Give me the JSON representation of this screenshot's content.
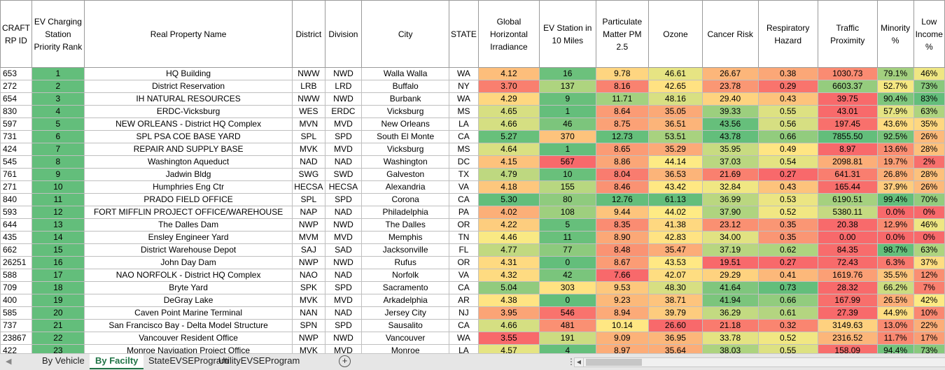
{
  "columns": [
    "CRAFT RP ID",
    "EV Charging Station Priority Rank",
    "Real Property Name",
    "District",
    "Division",
    "City",
    "STATE",
    "Global Horizontal Irradiance",
    "EV Station in 10 Miles",
    "Particulate Matter PM 2.5",
    "Ozone",
    "Cancer Risk",
    "Respiratory Hazard",
    "Traffic Proximity",
    "Minority %",
    "Low Income %"
  ],
  "rows": [
    [
      "653",
      "1",
      "HQ Building",
      "NWW",
      "NWD",
      "Walla Walla",
      "WA",
      "4.12",
      "16",
      "9.78",
      "46.61",
      "26.67",
      "0.38",
      "1030.73",
      "79.1%",
      "46%"
    ],
    [
      "272",
      "2",
      "District Reservation",
      "LRB",
      "LRD",
      "Buffalo",
      "NY",
      "3.70",
      "137",
      "8.16",
      "42.65",
      "23.78",
      "0.29",
      "6603.37",
      "52.7%",
      "73%"
    ],
    [
      "654",
      "3",
      "IH NATURAL RESOURCES",
      "NWW",
      "NWD",
      "Burbank",
      "WA",
      "4.29",
      "9",
      "11.71",
      "48.16",
      "29.40",
      "0.43",
      "39.75",
      "90.4%",
      "83%"
    ],
    [
      "830",
      "4",
      "ERDC-Vicksburg",
      "WES",
      "ERDC",
      "Vicksburg",
      "MS",
      "4.65",
      "1",
      "8.64",
      "35.05",
      "39.33",
      "0.55",
      "43.01",
      "57.9%",
      "63%"
    ],
    [
      "597",
      "5",
      "NEW ORLEANS - District HQ Complex",
      "MVN",
      "MVD",
      "New Orleans",
      "LA",
      "4.66",
      "46",
      "8.75",
      "36.51",
      "43.56",
      "0.56",
      "197.45",
      "43.6%",
      "35%"
    ],
    [
      "731",
      "6",
      "SPL PSA COE BASE YARD",
      "SPL",
      "SPD",
      "South El Monte",
      "CA",
      "5.27",
      "370",
      "12.73",
      "53.51",
      "43.78",
      "0.66",
      "7855.50",
      "92.5%",
      "26%"
    ],
    [
      "424",
      "7",
      "REPAIR AND SUPPLY BASE",
      "MVK",
      "MVD",
      "Vicksburg",
      "MS",
      "4.64",
      "1",
      "8.65",
      "35.29",
      "35.95",
      "0.49",
      "8.97",
      "13.6%",
      "28%"
    ],
    [
      "545",
      "8",
      "Washington Aqueduct",
      "NAD",
      "NAD",
      "Washington",
      "DC",
      "4.15",
      "567",
      "8.86",
      "44.14",
      "37.03",
      "0.54",
      "2098.81",
      "19.7%",
      "2%"
    ],
    [
      "761",
      "9",
      "Jadwin Bldg",
      "SWG",
      "SWD",
      "Galveston",
      "TX",
      "4.79",
      "10",
      "8.04",
      "36.53",
      "21.69",
      "0.27",
      "641.31",
      "26.8%",
      "28%"
    ],
    [
      "271",
      "10",
      "Humphries Eng Ctr",
      "HECSA",
      "HECSA",
      "Alexandria",
      "VA",
      "4.18",
      "155",
      "8.46",
      "43.42",
      "32.84",
      "0.43",
      "165.44",
      "37.9%",
      "26%"
    ],
    [
      "840",
      "11",
      "PRADO FIELD OFFICE",
      "SPL",
      "SPD",
      "Corona",
      "CA",
      "5.30",
      "80",
      "12.76",
      "61.13",
      "36.99",
      "0.53",
      "6190.51",
      "99.4%",
      "70%"
    ],
    [
      "593",
      "12",
      "FORT MIFFLIN PROJECT OFFICE/WAREHOUSE",
      "NAP",
      "NAD",
      "Philadelphia",
      "PA",
      "4.02",
      "108",
      "9.44",
      "44.02",
      "37.90",
      "0.52",
      "5380.11",
      "0.0%",
      "0%"
    ],
    [
      "644",
      "13",
      "The Dalles Dam",
      "NWP",
      "NWD",
      "The Dalles",
      "OR",
      "4.22",
      "5",
      "8.35",
      "41.38",
      "23.12",
      "0.35",
      "20.38",
      "12.9%",
      "46%"
    ],
    [
      "435",
      "14",
      "Ensley Engineer Yard",
      "MVM",
      "MVD",
      "Memphis",
      "TN",
      "4.46",
      "11",
      "8.90",
      "42.83",
      "34.00",
      "0.35",
      "0.00",
      "0.0%",
      "0%"
    ],
    [
      "662",
      "15",
      "District Warehouse Depot",
      "SAJ",
      "SAD",
      "Jacksonville",
      "FL",
      "4.77",
      "77",
      "8.48",
      "35.47",
      "37.19",
      "0.62",
      "84.35",
      "98.7%",
      "63%"
    ],
    [
      "26251",
      "16",
      "John Day Dam",
      "NWP",
      "NWD",
      "Rufus",
      "OR",
      "4.31",
      "0",
      "8.67",
      "43.53",
      "19.51",
      "0.27",
      "72.43",
      "6.3%",
      "37%"
    ],
    [
      "588",
      "17",
      "NAO NORFOLK - District HQ Complex",
      "NAO",
      "NAD",
      "Norfolk",
      "VA",
      "4.32",
      "42",
      "7.66",
      "42.07",
      "29.29",
      "0.41",
      "1619.76",
      "35.5%",
      "12%"
    ],
    [
      "709",
      "18",
      "Bryte Yard",
      "SPK",
      "SPD",
      "Sacramento",
      "CA",
      "5.04",
      "303",
      "9.53",
      "48.30",
      "41.64",
      "0.73",
      "28.32",
      "66.2%",
      "7%"
    ],
    [
      "400",
      "19",
      "DeGray Lake",
      "MVK",
      "MVD",
      "Arkadelphia",
      "AR",
      "4.38",
      "0",
      "9.23",
      "38.71",
      "41.94",
      "0.66",
      "167.99",
      "26.5%",
      "42%"
    ],
    [
      "585",
      "20",
      "Caven Point Marine Terminal",
      "NAN",
      "NAD",
      "Jersey City",
      "NJ",
      "3.95",
      "546",
      "8.94",
      "39.79",
      "36.29",
      "0.61",
      "27.39",
      "44.9%",
      "10%"
    ],
    [
      "737",
      "21",
      "San Francisco Bay - Delta Model Structure",
      "SPN",
      "SPD",
      "Sausalito",
      "CA",
      "4.66",
      "481",
      "10.14",
      "26.60",
      "21.18",
      "0.32",
      "3149.63",
      "13.0%",
      "22%"
    ],
    [
      "23867",
      "22",
      "Vancouver Resident Office",
      "NWP",
      "NWD",
      "Vancouver",
      "WA",
      "3.55",
      "191",
      "9.09",
      "36.95",
      "33.78",
      "0.52",
      "2316.52",
      "11.7%",
      "17%"
    ],
    [
      "422",
      "23",
      "Monroe Navigation Project Office",
      "MVK",
      "MVD",
      "Monroe",
      "LA",
      "4.57",
      "4",
      "8.97",
      "35.64",
      "38.03",
      "0.55",
      "158.09",
      "94.4%",
      "73%"
    ]
  ],
  "heat_colors": {
    "green": "#63be7b",
    "yellow": "#ffeb84",
    "red": "#f8696b"
  },
  "sheet_tabs": [
    "By Vehicle",
    "By Facilty",
    "StateEVSEProgram",
    "UtilityEVSEProgram"
  ],
  "active_tab": "By Facilty",
  "icons": {
    "tab_scroll": "triangle-left-icon",
    "add_sheet": "plus-circle-icon",
    "scroll_left": "triangle-left-icon"
  },
  "add_sheet_symbol": "+",
  "tab_scroll_symbol": "◀",
  "scroll_left_symbol": "◀",
  "scroll_separator": "⋮"
}
